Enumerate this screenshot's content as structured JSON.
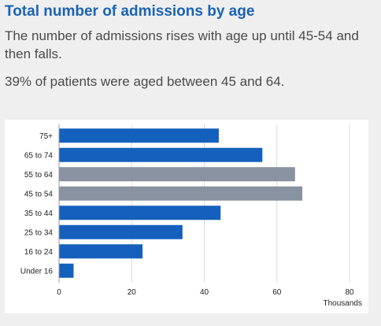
{
  "title": "Total number of admissions by age",
  "paragraphs": [
    "The number of admissions rises with age up until 45-54 and then falls.",
    "39% of patients were aged between 45 and 64."
  ],
  "colors": {
    "accent": "#1a63b5",
    "bar_default": "#1560bd",
    "bar_highlight": "#8892a0",
    "grid": "#dcdcdc"
  },
  "chart_data": {
    "type": "bar",
    "orientation": "horizontal",
    "categories": [
      "75+",
      "65 to 74",
      "55 to 64",
      "45 to 54",
      "35 to 44",
      "25 to 34",
      "16 to 24",
      "Under 16"
    ],
    "values": [
      44,
      56,
      65,
      67,
      44.5,
      34,
      23,
      4
    ],
    "highlighted": [
      "55 to 64",
      "45 to 54"
    ],
    "xlabel": "Thousands",
    "xlim": [
      0,
      80
    ],
    "xticks": [
      0,
      20,
      40,
      60,
      80
    ],
    "grid": true
  }
}
